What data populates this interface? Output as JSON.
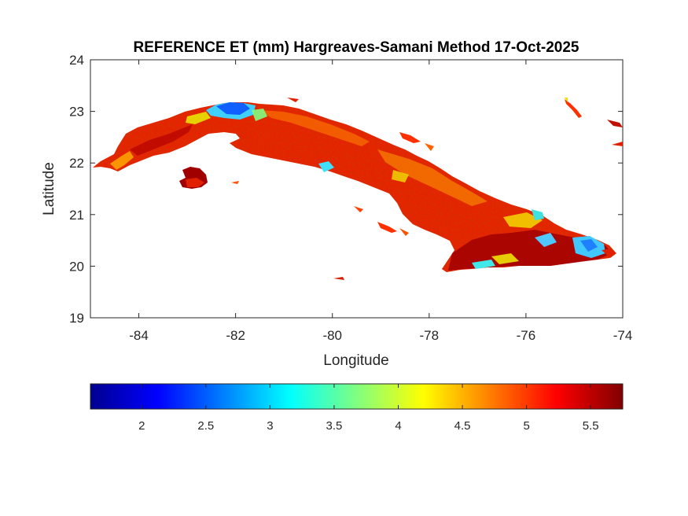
{
  "title": "REFERENCE ET (mm) Hargreaves-Samani Method  17-Oct-2025",
  "map": {
    "xlabel": "Longitude",
    "ylabel": "Latitude",
    "xlim": [
      -85,
      -74
    ],
    "ylim": [
      19,
      24
    ],
    "xticks": [
      -84,
      -82,
      -80,
      -78,
      -76,
      -74
    ],
    "yticks": [
      19,
      20,
      21,
      22,
      23,
      24
    ],
    "xtick_labels": [
      "-84",
      "-82",
      "-80",
      "-78",
      "-76",
      "-74"
    ],
    "ytick_labels": [
      "19",
      "20",
      "21",
      "22",
      "23",
      "24"
    ],
    "region": "Cuba",
    "colormap": "jet"
  },
  "colorbar": {
    "min": 1.6,
    "max": 5.75,
    "ticks": [
      2,
      2.5,
      3,
      3.5,
      4,
      4.5,
      5,
      5.5
    ],
    "tick_labels": [
      "2",
      "2.5",
      "3",
      "3.5",
      "4",
      "4.5",
      "5",
      "5.5"
    ],
    "orientation": "horizontal",
    "location": "below"
  }
}
